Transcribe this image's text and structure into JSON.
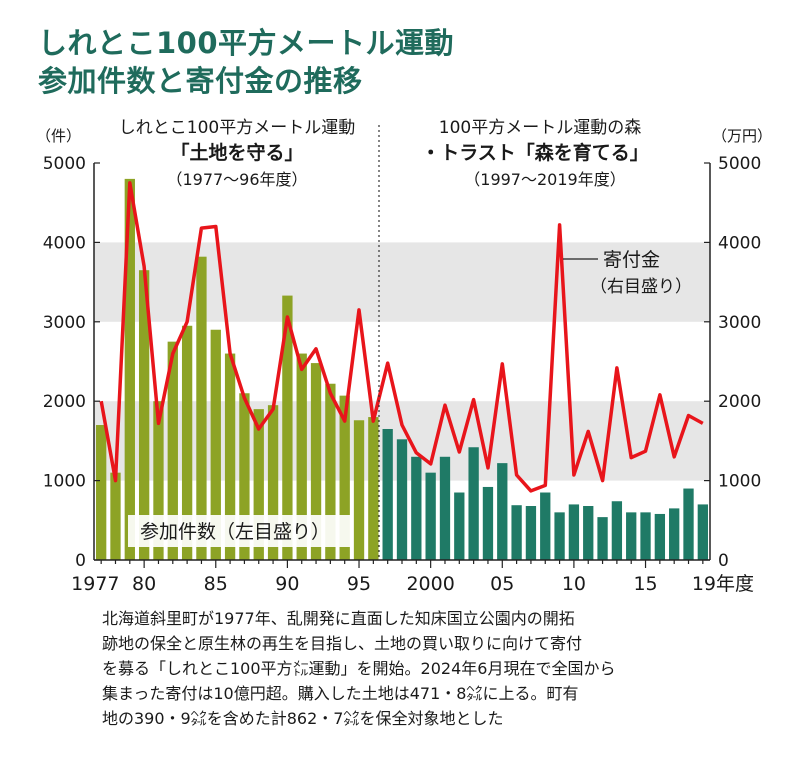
{
  "header": {
    "title_line1": "しれとこ100平方メートル運動",
    "title_line2": "参加件数と寄付金の推移"
  },
  "axes": {
    "left_unit": "（件）",
    "right_unit": "（万円）",
    "y_ticks": [
      "5000",
      "4000",
      "3000",
      "2000",
      "1000",
      "0"
    ],
    "x_tick_labels": [
      "1977",
      "80",
      "85",
      "90",
      "95",
      "2000",
      "05",
      "10",
      "15",
      "19年度"
    ]
  },
  "panels": {
    "left_title": "しれとこ100平方メートル運動",
    "left_subtitle": "「土地を守る」",
    "left_period": "（1977〜96年度）",
    "right_title": "100平方メートル運動の森",
    "right_subtitle": "・トラスト「森を育てる」",
    "right_period": "（1997〜2019年度）"
  },
  "legend": {
    "line_label": "寄付金",
    "line_sub": "（右目盛り）",
    "bar_label": "参加件数（左目盛り）"
  },
  "note": [
    "北海道斜里町が1977年、乱開発に直面した知床国立公園内の開拓",
    "跡地の保全と原生林の再生を目指し、土地の買い取りに向けて寄付",
    "を募る「しれとこ100平方㍍運動」を開始。2024年6月現在で全国から",
    "集まった寄付は10億円超。購入した土地は471・8㌶に上る。町有",
    "地の390・9㌶を含めた計862・7㌶を保全対象地とした"
  ],
  "colors": {
    "title": "#1f6b5c",
    "bar_phase1": "#8da325",
    "bar_phase2": "#1f7a66",
    "line": "#e8151b",
    "band": "#e6e6e6"
  },
  "chart_data": {
    "type": "bar",
    "x": [
      1977,
      1978,
      1979,
      1980,
      1981,
      1982,
      1983,
      1984,
      1985,
      1986,
      1987,
      1988,
      1989,
      1990,
      1991,
      1992,
      1993,
      1994,
      1995,
      1996,
      1997,
      1998,
      1999,
      2000,
      2001,
      2002,
      2003,
      2004,
      2005,
      2006,
      2007,
      2008,
      2009,
      2010,
      2011,
      2012,
      2013,
      2014,
      2015,
      2016,
      2017,
      2018,
      2019
    ],
    "series": [
      {
        "name": "参加件数",
        "axis": "left",
        "type": "bar",
        "unit": "件",
        "values": [
          1700,
          1100,
          4800,
          3650,
          2000,
          2750,
          2950,
          3820,
          2900,
          2600,
          2100,
          1900,
          1950,
          3330,
          2600,
          2480,
          2220,
          2070,
          1760,
          1800,
          1650,
          1520,
          1300,
          1100,
          1300,
          850,
          1420,
          920,
          1220,
          690,
          680,
          850,
          600,
          700,
          680,
          540,
          740,
          600,
          600,
          580,
          650,
          900,
          700
        ]
      },
      {
        "name": "寄付金",
        "axis": "right",
        "type": "line",
        "unit": "万円",
        "values": [
          2000,
          1000,
          4750,
          3700,
          1720,
          2600,
          3000,
          4180,
          4200,
          2600,
          2040,
          1650,
          1900,
          3060,
          2400,
          2660,
          2100,
          1750,
          3150,
          1750,
          2480,
          1700,
          1350,
          1210,
          1950,
          1360,
          2020,
          1160,
          2470,
          1070,
          870,
          940,
          4220,
          1070,
          1620,
          1000,
          2420,
          1290,
          1370,
          2080,
          1300,
          1820,
          1720
        ]
      }
    ],
    "phases": [
      {
        "label": "しれとこ100平方メートル運動「土地を守る」",
        "from": 1977,
        "to": 1996
      },
      {
        "label": "100平方メートル運動の森・トラスト「森を育てる」",
        "from": 1997,
        "to": 2019
      }
    ],
    "ylim_left": [
      0,
      5000
    ],
    "ylim_right": [
      0,
      5000
    ],
    "grid_bands": [
      [
        1000,
        2000
      ],
      [
        3000,
        4000
      ]
    ]
  }
}
